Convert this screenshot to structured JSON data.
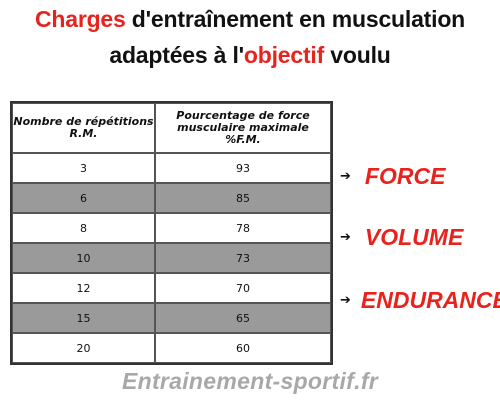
{
  "title": {
    "line1_red": "Charges",
    "line1_rest": " d'entraînement en musculation",
    "line2_start": "adaptées à l'",
    "line2_red": "objectif",
    "line2_end": " voulu"
  },
  "table": {
    "headers": {
      "col1_line1": "Nombre de répétitions",
      "col1_line2": "R.M.",
      "col2_line1": "Pourcentage de force",
      "col2_line2": "musculaire maximale",
      "col2_line3": "%F.M."
    },
    "rows": [
      {
        "reps": "3",
        "percent": "93"
      },
      {
        "reps": "6",
        "percent": "85"
      },
      {
        "reps": "8",
        "percent": "78"
      },
      {
        "reps": "10",
        "percent": "73"
      },
      {
        "reps": "12",
        "percent": "70"
      },
      {
        "reps": "15",
        "percent": "65"
      },
      {
        "reps": "20",
        "percent": "60"
      }
    ]
  },
  "objectives": {
    "arrow": "➔",
    "force": "FORCE",
    "volume": "VOLUME",
    "endurance": "ENDURANCE"
  },
  "footer": "Entrainement-sportif.fr",
  "colors": {
    "accent_red": "#e8231d",
    "shaded_row": "#9a9a9a",
    "footer_gray": "#a8a8a8"
  }
}
